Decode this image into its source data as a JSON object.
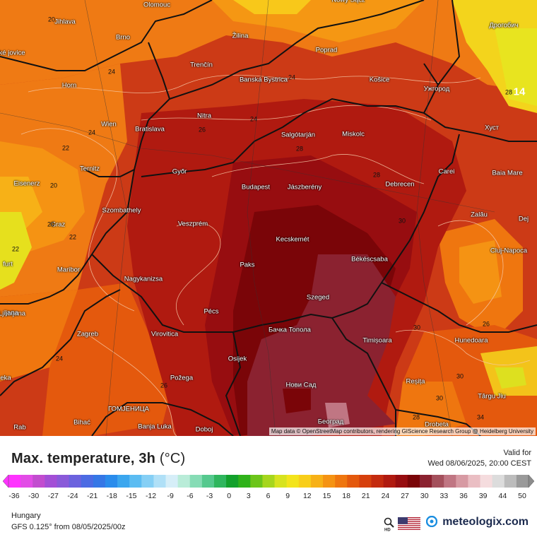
{
  "map": {
    "attribution": "Map data © OpenStreetMap contributors, rendering GIScience Research Group @ Heidelberg University",
    "cities": [
      {
        "name": "Olomouc",
        "key": "olomouc"
      },
      {
        "name": "Nowy Sącz",
        "key": "nowy-sacz"
      },
      {
        "name": "Jihlava",
        "key": "jihlava"
      },
      {
        "name": "Brno",
        "key": "brno"
      },
      {
        "name": "Žilina",
        "key": "zilina"
      },
      {
        "name": "Poprad",
        "key": "poprad"
      },
      {
        "name": "Дрогобич",
        "key": "drohobych"
      },
      {
        "name": "Trenčín",
        "key": "trencin"
      },
      {
        "name": "Banská Bystrica",
        "key": "banska-bystrica"
      },
      {
        "name": "Košice",
        "key": "kosice"
      },
      {
        "name": "Ужгород",
        "key": "uzhhorod"
      },
      {
        "name": "Horn",
        "key": "horn"
      },
      {
        "name": "Nitra",
        "key": "nitra"
      },
      {
        "name": "Wien",
        "key": "wien"
      },
      {
        "name": "Bratislava",
        "key": "bratislava"
      },
      {
        "name": "Salgótarján",
        "key": "salgotarjan"
      },
      {
        "name": "Miskolc",
        "key": "miskolc"
      },
      {
        "name": "Хуст",
        "key": "khust"
      },
      {
        "name": "Ternitz",
        "key": "ternitz"
      },
      {
        "name": "Győr",
        "key": "gyor"
      },
      {
        "name": "Carei",
        "key": "carei"
      },
      {
        "name": "Baia Mare",
        "key": "baia-mare"
      },
      {
        "name": "Eisenerz",
        "key": "eisenerz"
      },
      {
        "name": "Budapest",
        "key": "budapest"
      },
      {
        "name": "Jászberény",
        "key": "jaszbereny"
      },
      {
        "name": "Debrecen",
        "key": "debrecen"
      },
      {
        "name": "Szombathely",
        "key": "szombathely"
      },
      {
        "name": "Zalău",
        "key": "zalau"
      },
      {
        "name": "Graz",
        "key": "graz"
      },
      {
        "name": "Veszprém",
        "key": "veszprem"
      },
      {
        "name": "Dej",
        "key": "dej"
      },
      {
        "name": "Kecskemét",
        "key": "kecskemet"
      },
      {
        "name": "Cluj-Napoca",
        "key": "cluj-napoca"
      },
      {
        "name": "Maribor",
        "key": "maribor"
      },
      {
        "name": "Paks",
        "key": "paks"
      },
      {
        "name": "Békéscsaba",
        "key": "bekescsaba"
      },
      {
        "name": "Nagykanizsa",
        "key": "nagykanizsa"
      },
      {
        "name": "Szeged",
        "key": "szeged"
      },
      {
        "name": "Pécs",
        "key": "pecs"
      },
      {
        "name": "Ljubljana",
        "key": "ljubljana"
      },
      {
        "name": "Бачка Топола",
        "key": "backa-topola"
      },
      {
        "name": "Virovitica",
        "key": "virovitica"
      },
      {
        "name": "Zagreb",
        "key": "zagreb"
      },
      {
        "name": "Timișoara",
        "key": "timisoara"
      },
      {
        "name": "Hunedoara",
        "key": "hunedoara"
      },
      {
        "name": "Osijek",
        "key": "osijek"
      },
      {
        "name": "Požega",
        "key": "pozega"
      },
      {
        "name": "Reșița",
        "key": "resita"
      },
      {
        "name": "Нови Сад",
        "key": "novi-sad"
      },
      {
        "name": "Târgu Jiu",
        "key": "targu-jiu"
      },
      {
        "name": "ГОМЈЕНИЦА",
        "key": "gomjenica"
      },
      {
        "name": "Bihać",
        "key": "bihac"
      },
      {
        "name": "Banja Luka",
        "key": "banja-luka"
      },
      {
        "name": "Doboj",
        "key": "doboj"
      },
      {
        "name": "Београд",
        "key": "beograd"
      },
      {
        "name": "Drobeta",
        "key": "drobeta"
      },
      {
        "name": "Rab",
        "key": "rab"
      },
      {
        "name": "eské jovice",
        "key": "ceske-budejovice"
      },
      {
        "name": "furt",
        "key": "klagenfurt"
      },
      {
        "name": "ljana",
        "key": "ljubljana-edge"
      },
      {
        "name": "eka",
        "key": "rijeka-edge"
      }
    ],
    "isotherm_labels": [
      "20",
      "24",
      "20",
      "24",
      "24",
      "26",
      "22",
      "20",
      "22",
      "22",
      "24",
      "26",
      "28",
      "28",
      "30",
      "30",
      "26",
      "30",
      "28",
      "30",
      "24",
      "34",
      "28",
      "14"
    ]
  },
  "legend": {
    "title": "Max. temperature, 3h",
    "unit": "(°C)",
    "valid_label": "Valid for",
    "valid_time": "Wed 08/06/2025, 20:00 CEST",
    "ticks": [
      "-36",
      "-30",
      "-27",
      "-24",
      "-21",
      "-18",
      "-15",
      "-12",
      "-9",
      "-6",
      "-3",
      "0",
      "3",
      "6",
      "9",
      "12",
      "15",
      "18",
      "21",
      "24",
      "27",
      "30",
      "33",
      "36",
      "39",
      "44",
      "50"
    ],
    "colors": [
      "#ff33ff",
      "#e24ce6",
      "#c24ccf",
      "#a34fd6",
      "#8a5ad9",
      "#6b62de",
      "#4c6be3",
      "#3577e6",
      "#2a8cec",
      "#3ba6ee",
      "#5bbcf2",
      "#85cff5",
      "#b0e0f7",
      "#d6eef8",
      "#b9ecd8",
      "#86dcb5",
      "#55c98e",
      "#2fb65e",
      "#12a12c",
      "#2fb21a",
      "#6cc51a",
      "#a6d61d",
      "#d7e31f",
      "#f3e41c",
      "#f8ce1a",
      "#f7b117",
      "#f59313",
      "#ef760f",
      "#e4590d",
      "#d6400d",
      "#c42b0f",
      "#b01a10",
      "#970d10",
      "#7a0508",
      "#8b2230",
      "#a4505c",
      "#c07683",
      "#d79aa3",
      "#eabec3",
      "#f5dcde",
      "#dcdcdc",
      "#bcbcbc",
      "#9a9a9a"
    ],
    "region": "Hungary",
    "model": "GFS 0.125° from 08/05/2025/00z",
    "logo": "meteologix.com"
  }
}
